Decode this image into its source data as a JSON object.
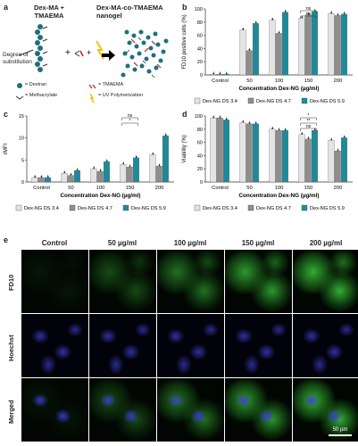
{
  "panel_a": {
    "letter": "a",
    "left_title_l1": "Dex-MA +",
    "left_title_l2": "TMAEMA",
    "right_title_l1": "Dex-MA-co-TMAEMA",
    "right_title_l2": "nanogel",
    "degree_l1": "Degree of",
    "degree_l2": "substitution",
    "legend": [
      "= Dextran",
      "= TMAEMA",
      "= Methacrylate",
      "= UV Polymerization"
    ]
  },
  "panel_labels": {
    "b": "b",
    "c": "c",
    "d": "d",
    "e": "e"
  },
  "legend_items": [
    "Dex-NG DS 3.4",
    "Dex-NG DS 4.7",
    "Dex-NG DS 5.9"
  ],
  "colors": {
    "ds34": "#e4e4e4",
    "ds47": "#8e8e8e",
    "ds59": "#1d8a99"
  },
  "chart_data": [
    {
      "id": "b",
      "type": "bar",
      "ylabel": "FD10 positive cells (%)",
      "xlabel": "Concentration Dex-NG (µg/ml)",
      "categories": [
        "Control",
        "50",
        "100",
        "150",
        "200"
      ],
      "ylim": [
        0,
        100
      ],
      "yticks": [
        "0",
        "20",
        "40",
        "60",
        "80",
        "100"
      ],
      "series": [
        {
          "name": "Dex-NG DS 3.4",
          "values": [
            1,
            68,
            83,
            86,
            93
          ]
        },
        {
          "name": "Dex-NG DS 4.7",
          "values": [
            1,
            37,
            63,
            91,
            90
          ]
        },
        {
          "name": "Dex-NG DS 5.9",
          "values": [
            1,
            78,
            95,
            96,
            92
          ]
        }
      ],
      "significance": [
        "ns",
        "ns"
      ]
    },
    {
      "id": "c",
      "type": "bar",
      "ylabel": "rMFI",
      "xlabel": "Concentration Dex-NG (µg/ml)",
      "categories": [
        "Control",
        "50",
        "100",
        "150",
        "200"
      ],
      "ylim": [
        0,
        15
      ],
      "yticks": [
        "0",
        "5",
        "10",
        "15"
      ],
      "series": [
        {
          "name": "Dex-NG DS 3.4",
          "values": [
            1,
            2.0,
            3.0,
            4.0,
            6.2
          ]
        },
        {
          "name": "Dex-NG DS 4.7",
          "values": [
            1,
            1.5,
            2.4,
            3.4,
            3.6
          ]
        },
        {
          "name": "Dex-NG DS 5.9",
          "values": [
            1,
            2.6,
            4.6,
            5.5,
            10.5
          ]
        }
      ],
      "significance": [
        "ns",
        "*"
      ]
    },
    {
      "id": "d",
      "type": "bar",
      "ylabel": "Viability (%)",
      "xlabel": "Concentration Dex-NG (µg/ml)",
      "categories": [
        "Control",
        "50",
        "100",
        "150",
        "200"
      ],
      "ylim": [
        0,
        100
      ],
      "yticks": [
        "0",
        "20",
        "40",
        "60",
        "80",
        "100"
      ],
      "series": [
        {
          "name": "Dex-NG DS 3.4",
          "values": [
            97,
            90,
            80,
            72,
            63
          ]
        },
        {
          "name": "Dex-NG DS 4.7",
          "values": [
            97,
            88,
            78,
            65,
            47
          ]
        },
        {
          "name": "Dex-NG DS 5.9",
          "values": [
            94,
            88,
            78,
            78,
            67
          ]
        }
      ],
      "significance": [
        "*",
        "**",
        "ns"
      ]
    }
  ],
  "panel_e": {
    "columns": [
      "Control",
      "50 µg/ml",
      "100 µg/ml",
      "150 µg/ml",
      "200 µg/ml"
    ],
    "rows": [
      "FD10",
      "Hoechst",
      "Merged"
    ],
    "scalebar": "50 µm"
  }
}
